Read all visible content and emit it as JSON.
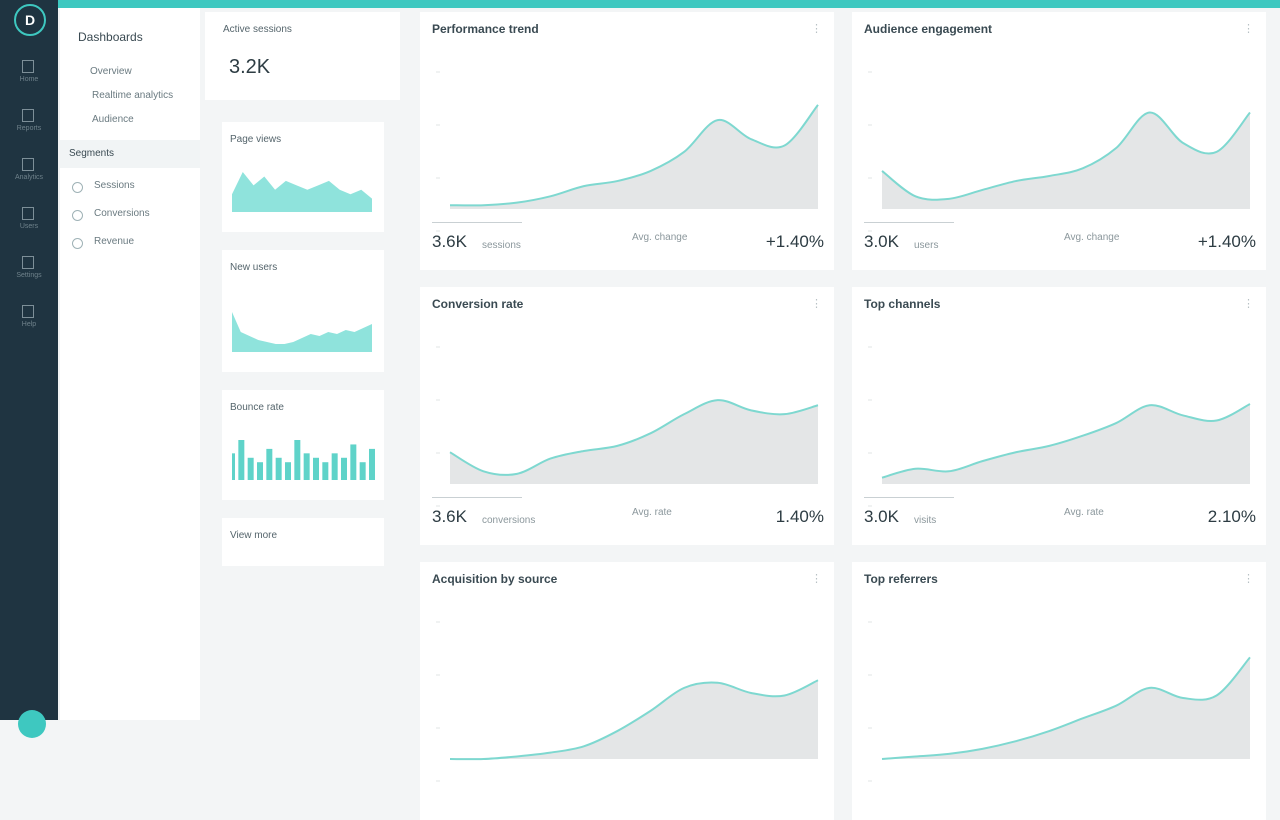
{
  "sidebar": {
    "logo": "D",
    "items": [
      "Home",
      "Reports",
      "Analytics",
      "Users",
      "Settings",
      "Help"
    ]
  },
  "nav": {
    "title": "Dashboards",
    "items": [
      "Overview",
      "Realtime analytics",
      "Audience"
    ],
    "section": "Segments",
    "section_items": [
      "Sessions",
      "Conversions",
      "Revenue"
    ]
  },
  "kpis": [
    {
      "title": "Active sessions",
      "value": "3.2K"
    },
    {
      "title": "Page views",
      "kind": "area",
      "values": [
        4,
        9,
        6,
        8,
        5,
        7,
        6,
        5,
        6,
        7,
        5,
        4,
        5,
        3
      ]
    },
    {
      "title": "New users",
      "kind": "area",
      "values": [
        20,
        10,
        8,
        6,
        5,
        4,
        4,
        5,
        7,
        9,
        8,
        10,
        9,
        11,
        10,
        12,
        14
      ]
    },
    {
      "title": "Bounce rate",
      "kind": "bar",
      "values": [
        6,
        9,
        5,
        4,
        7,
        5,
        4,
        9,
        6,
        5,
        4,
        6,
        5,
        8,
        4,
        7
      ]
    },
    {
      "title": "View more"
    }
  ],
  "cards": [
    {
      "title": "Performance trend",
      "values": [
        3,
        3,
        5,
        10,
        18,
        22,
        30,
        45,
        70,
        55,
        50,
        82
      ],
      "primary": "3.6K",
      "primary_label": "sessions",
      "middle_label": "Avg. change",
      "secondary": "+1.40%"
    },
    {
      "title": "Audience engagement",
      "values": [
        30,
        10,
        8,
        15,
        22,
        26,
        32,
        48,
        76,
        52,
        45,
        76
      ],
      "primary": "3.0K",
      "primary_label": "users",
      "middle_label": "Avg. change",
      "secondary": "+1.40%"
    },
    {
      "title": "Conversion rate",
      "values": [
        25,
        10,
        8,
        20,
        26,
        30,
        40,
        55,
        66,
        58,
        55,
        62
      ],
      "primary": "3.6K",
      "primary_label": "conversions",
      "middle_label": "Avg. rate",
      "secondary": "1.40%"
    },
    {
      "title": "Top channels",
      "values": [
        5,
        12,
        10,
        18,
        25,
        30,
        38,
        48,
        62,
        54,
        50,
        63
      ],
      "primary": "3.0K",
      "primary_label": "visits",
      "middle_label": "Avg. rate",
      "secondary": "2.10%"
    },
    {
      "title": "Acquisition by source",
      "values": [
        0,
        0,
        2,
        5,
        10,
        22,
        38,
        56,
        60,
        52,
        50,
        62
      ]
    },
    {
      "title": "Top referrers",
      "values": [
        0,
        2,
        4,
        8,
        14,
        22,
        32,
        42,
        56,
        48,
        50,
        80
      ]
    }
  ]
}
